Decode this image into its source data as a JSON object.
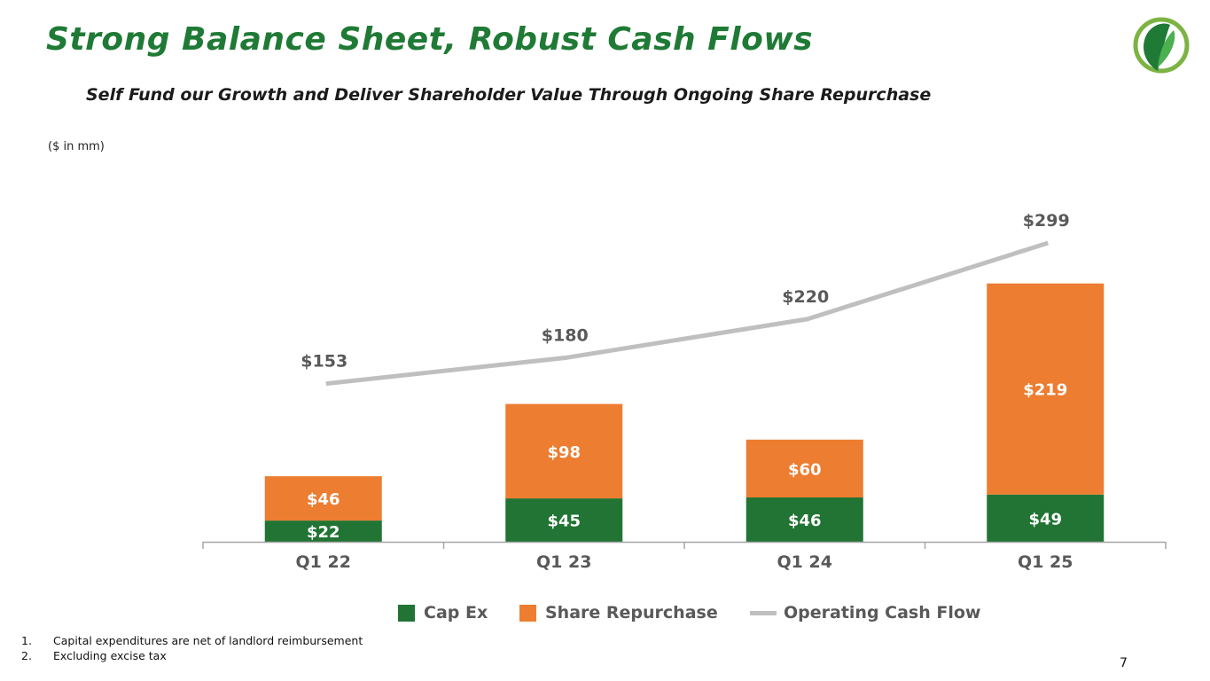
{
  "slide": {
    "title": "Strong Balance Sheet, Robust Cash Flows",
    "subtitle": "Self Fund our Growth and Deliver Shareholder Value Through Ongoing Share Repurchase",
    "units_note": "($ in mm)",
    "page_number": "7",
    "footnotes": [
      {
        "num": "1.",
        "text": "Capital expenditures are net of landlord reimbursement"
      },
      {
        "num": "2.",
        "text": "Excluding excise tax"
      }
    ]
  },
  "colors": {
    "title": "#1f7a35",
    "cap_ex": "#217434",
    "share_repurchase": "#ed7d31",
    "operating_cash_flow": "#bfbfbf",
    "axis": "#a6a6a6",
    "bar_label": "#ffffff",
    "line_label": "#595959"
  },
  "legend": {
    "cap_ex": "Cap Ex",
    "share_repurchase": "Share Repurchase",
    "operating_cash_flow": "Operating Cash Flow"
  },
  "chart_data": {
    "type": "bar",
    "stacked": true,
    "title": "",
    "xlabel": "",
    "ylabel": "",
    "categories": [
      "Q1 22",
      "Q1 23",
      "Q1 24",
      "Q1 25"
    ],
    "series": [
      {
        "name": "Cap Ex",
        "type": "bar",
        "values": [
          22,
          45,
          46,
          49
        ],
        "labels": [
          "$22",
          "$45",
          "$46",
          "$49"
        ]
      },
      {
        "name": "Share Repurchase",
        "type": "bar",
        "values": [
          46,
          98,
          60,
          219
        ],
        "labels": [
          "$46",
          "$98",
          "$60",
          "$219"
        ]
      },
      {
        "name": "Operating Cash Flow",
        "type": "line",
        "values": [
          153,
          180,
          220,
          299
        ],
        "labels": [
          "$153",
          "$180",
          "$220",
          "$299"
        ]
      }
    ],
    "ylim": [
      0,
      300
    ],
    "grid": false,
    "legend_position": "bottom"
  }
}
